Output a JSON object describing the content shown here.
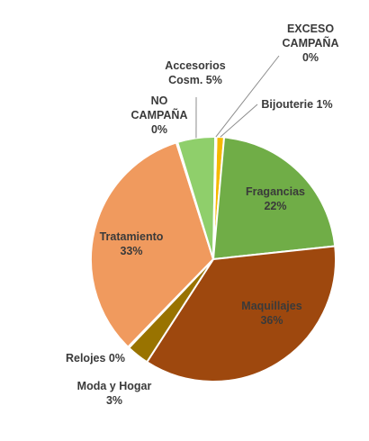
{
  "chart_data": {
    "type": "pie",
    "title": "",
    "slices": [
      {
        "name": "Bijouterie",
        "value": 1,
        "pct_label": "1%",
        "color": "#f5b800"
      },
      {
        "name": "Fragancias",
        "value": 22,
        "pct_label": "22%",
        "color": "#70ad47"
      },
      {
        "name": "Maquillajes",
        "value": 36,
        "pct_label": "36%",
        "color": "#9e480e"
      },
      {
        "name": "Moda y Hogar",
        "value": 3,
        "pct_label": "3%",
        "color": "#997300"
      },
      {
        "name": "Relojes",
        "value": 0,
        "pct_label": "0%",
        "color": "#c0c0c0"
      },
      {
        "name": "Tratamiento",
        "value": 33,
        "pct_label": "33%",
        "color": "#f09a5e"
      },
      {
        "name": "NO CAMPAÑA",
        "value": 0,
        "pct_label": "0%",
        "color": "#bfbfbf"
      },
      {
        "name": "Accesorios Cosm.",
        "value": 5,
        "pct_label": "5%",
        "color": "#8fcf6b"
      },
      {
        "name": "EXCESO CAMPAÑA",
        "value": 0,
        "pct_label": "0%",
        "color": "#4472c4"
      }
    ],
    "labels": [
      {
        "lines": [
          "Bijouterie 1%"
        ]
      },
      {
        "lines": [
          "Fragancias",
          "22%"
        ]
      },
      {
        "lines": [
          "Maquillajes",
          "36%"
        ]
      },
      {
        "lines": [
          "Moda y Hogar",
          "3%"
        ]
      },
      {
        "lines": [
          "Relojes 0%"
        ]
      },
      {
        "lines": [
          "Tratamiento",
          "33%"
        ]
      },
      {
        "lines": [
          "NO",
          "CAMPAÑA",
          "0%"
        ]
      },
      {
        "lines": [
          "Accesorios",
          "Cosm. 5%"
        ]
      },
      {
        "lines": [
          "EXCESO",
          "CAMPAÑA",
          "0%"
        ]
      }
    ]
  }
}
